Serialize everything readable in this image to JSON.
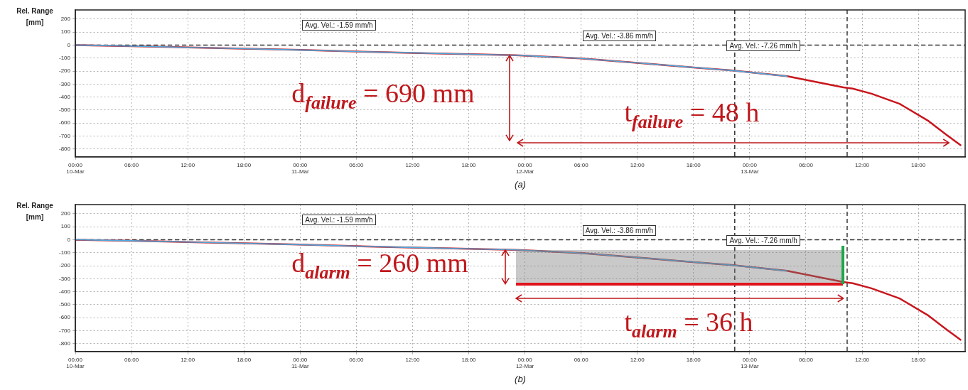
{
  "chart_data": [
    {
      "type": "line",
      "ylabel": "Rel. Range [mm]",
      "xlim": [
        "--03-10T00:00",
        "--03-13T23:00"
      ],
      "ylim": [
        -860,
        270
      ],
      "xticks": [
        {
          "value": "--03-10T00:00",
          "label": "00:00 10-Mar"
        },
        {
          "value": "--03-10T06:00",
          "label": "06:00"
        },
        {
          "value": "--03-10T12:00",
          "label": "12:00"
        },
        {
          "value": "--03-10T18:00",
          "label": "18:00"
        },
        {
          "value": "--03-11T00:00",
          "label": "00:00 11-Mar"
        },
        {
          "value": "--03-11T06:00",
          "label": "06:00"
        },
        {
          "value": "--03-11T12:00",
          "label": "12:00"
        },
        {
          "value": "--03-11T18:00",
          "label": "18:00"
        },
        {
          "value": "--03-12T00:00",
          "label": "00:00 12-Mar"
        },
        {
          "value": "--03-12T06:00",
          "label": "06:00"
        },
        {
          "value": "--03-12T12:00",
          "label": "12:00"
        },
        {
          "value": "--03-12T18:00",
          "label": "18:00"
        },
        {
          "value": "--03-13T00:00",
          "label": "00:00 13-Mar"
        },
        {
          "value": "--03-13T06:00",
          "label": "06:00"
        },
        {
          "value": "--03-13T12:00",
          "label": "12:00"
        },
        {
          "value": "--03-13T18:00",
          "label": "18:00"
        }
      ],
      "yticks": [
        200,
        100,
        0,
        -100,
        -200,
        -300,
        -400,
        -500,
        -600,
        -700,
        -800
      ],
      "grid": true,
      "marker": "none",
      "line_style": "solid",
      "series": [
        {
          "color": "#c8161d",
          "x": [
            "--03-10T00:00",
            "--03-10T06:00",
            "--03-10T12:00",
            "--03-10T18:00",
            "--03-11T00:00",
            "--03-11T06:00",
            "--03-11T12:00",
            "--03-11T18:00",
            "--03-11T23:00",
            "--03-12T06:00",
            "--03-12T12:00",
            "--03-12T18:00",
            "--03-12T22:00",
            "--03-13T04:00",
            "--03-13T10:00",
            "--03-13T11:00",
            "--03-13T13:00",
            "--03-13T16:00",
            "--03-13T19:00",
            "--03-13T21:00",
            "--03-13T22:30"
          ],
          "values": [
            0,
            -8,
            -18,
            -28,
            -38,
            -50,
            -60,
            -70,
            -78,
            -103,
            -137,
            -172,
            -195,
            -240,
            -326,
            -335,
            -374,
            -452,
            -580,
            -690,
            -770
          ]
        },
        {
          "color": "#4fa8dc",
          "x": [
            "--03-10T00:00",
            "--03-10T06:00",
            "--03-10T12:00",
            "--03-10T18:00",
            "--03-11T00:00",
            "--03-11T06:00",
            "--03-11T12:00",
            "--03-11T18:00",
            "--03-11T23:00",
            "--03-12T06:00",
            "--03-12T12:00",
            "--03-12T18:00",
            "--03-12T22:00",
            "--03-13T04:00"
          ],
          "values": [
            0,
            -8,
            -18,
            -28,
            -38,
            -50,
            -60,
            -70,
            -78,
            -103,
            -137,
            -172,
            -195,
            -240
          ]
        }
      ],
      "ref_lines": [
        {
          "axis": "y",
          "value": 0,
          "color": "#333333",
          "line_style": "dashed"
        },
        {
          "axis": "x",
          "value": "--03-12T22:24",
          "color": "#333333",
          "line_style": "dashed"
        },
        {
          "axis": "x",
          "value": "--03-13T10:24",
          "color": "#333333",
          "line_style": "dashed"
        }
      ],
      "annotations": [
        "Avg. Vel.: -1.59 mm/h",
        "Avg. Vel.: -3.86 mm/h",
        "Avg. Vel.: -7.26 mm/h",
        "d$_{failure}$ = 690 mm",
        "t$_{failure}$ = 48 h",
        "(a)"
      ]
    },
    {
      "type": "line",
      "ylabel": "Rel. Range [mm]",
      "xlim": [
        "--03-10T00:00",
        "--03-13T23:00"
      ],
      "ylim": [
        -860,
        270
      ],
      "xticks": [
        {
          "value": "--03-10T00:00",
          "label": "00:00 10-Mar"
        },
        {
          "value": "--03-10T06:00",
          "label": "06:00"
        },
        {
          "value": "--03-10T12:00",
          "label": "12:00"
        },
        {
          "value": "--03-10T18:00",
          "label": "18:00"
        },
        {
          "value": "--03-11T00:00",
          "label": "00:00 11-Mar"
        },
        {
          "value": "--03-11T06:00",
          "label": "06:00"
        },
        {
          "value": "--03-11T12:00",
          "label": "12:00"
        },
        {
          "value": "--03-11T18:00",
          "label": "18:00"
        },
        {
          "value": "--03-12T00:00",
          "label": "00:00 12-Mar"
        },
        {
          "value": "--03-12T06:00",
          "label": "06:00"
        },
        {
          "value": "--03-12T12:00",
          "label": "12:00"
        },
        {
          "value": "--03-12T18:00",
          "label": "18:00"
        },
        {
          "value": "--03-13T00:00",
          "label": "00:00 13-Mar"
        },
        {
          "value": "--03-13T06:00",
          "label": "06:00"
        },
        {
          "value": "--03-13T12:00",
          "label": "12:00"
        },
        {
          "value": "--03-13T18:00",
          "label": "18:00"
        }
      ],
      "yticks": [
        200,
        100,
        0,
        -100,
        -200,
        -300,
        -400,
        -500,
        -600,
        -700,
        -800
      ],
      "grid": true,
      "marker": "none",
      "line_style": "solid",
      "series": [
        {
          "color": "#c8161d",
          "x": [
            "--03-10T00:00",
            "--03-10T06:00",
            "--03-10T12:00",
            "--03-10T18:00",
            "--03-11T00:00",
            "--03-11T06:00",
            "--03-11T12:00",
            "--03-11T18:00",
            "--03-11T23:00",
            "--03-12T06:00",
            "--03-12T12:00",
            "--03-12T18:00",
            "--03-12T22:00",
            "--03-13T04:00",
            "--03-13T10:00",
            "--03-13T11:00",
            "--03-13T13:00",
            "--03-13T16:00",
            "--03-13T19:00",
            "--03-13T21:00",
            "--03-13T22:30"
          ],
          "values": [
            0,
            -8,
            -18,
            -28,
            -38,
            -50,
            -60,
            -70,
            -78,
            -103,
            -137,
            -172,
            -195,
            -240,
            -326,
            -335,
            -374,
            -452,
            -580,
            -690,
            -770
          ]
        },
        {
          "color": "#4fa8dc",
          "x": [
            "--03-10T00:00",
            "--03-10T06:00",
            "--03-10T12:00",
            "--03-10T18:00",
            "--03-11T00:00",
            "--03-11T06:00",
            "--03-11T12:00",
            "--03-11T18:00",
            "--03-11T23:00",
            "--03-12T06:00",
            "--03-12T12:00",
            "--03-12T18:00",
            "--03-12T22:00",
            "--03-13T04:00"
          ],
          "values": [
            0,
            -8,
            -18,
            -28,
            -38,
            -50,
            -60,
            -70,
            -78,
            -103,
            -137,
            -172,
            -195,
            -240
          ]
        }
      ],
      "ref_lines": [
        {
          "axis": "y",
          "value": 0,
          "color": "#333333",
          "line_style": "dashed"
        },
        {
          "axis": "x",
          "value": "--03-12T22:24",
          "color": "#333333",
          "line_style": "dashed"
        },
        {
          "axis": "x",
          "value": "--03-13T10:24",
          "color": "#333333",
          "line_style": "dashed"
        }
      ],
      "annotations": [
        "Avg. Vel.: -1.59 mm/h",
        "Avg. Vel.: -3.86 mm/h",
        "Avg. Vel.: -7.26 mm/h",
        "d$_{alarm}$ = 260 mm",
        "t$_{alarm}$ = 36 h",
        "(b)"
      ]
    }
  ]
}
